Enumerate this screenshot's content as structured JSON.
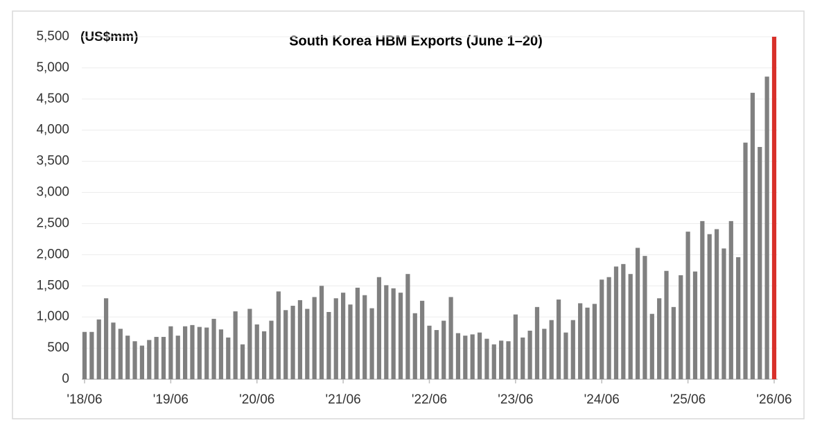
{
  "chart_data": {
    "type": "bar",
    "title": "South Korea HBM Exports (June 1–20)",
    "unit_label": "(US$mm)",
    "categories": [
      "'18/06",
      null,
      null,
      null,
      null,
      null,
      null,
      null,
      null,
      null,
      null,
      null,
      "'19/06",
      null,
      null,
      null,
      null,
      null,
      null,
      null,
      null,
      null,
      null,
      null,
      "'20/06",
      null,
      null,
      null,
      null,
      null,
      null,
      null,
      null,
      null,
      null,
      null,
      "'21/06",
      null,
      null,
      null,
      null,
      null,
      null,
      null,
      null,
      null,
      null,
      null,
      "'22/06",
      null,
      null,
      null,
      null,
      null,
      null,
      null,
      null,
      null,
      null,
      null,
      "'23/06",
      null,
      null,
      null,
      null,
      null,
      null,
      null,
      null,
      null,
      null,
      null,
      "'24/06",
      null,
      null,
      null,
      null,
      null,
      null,
      null,
      null,
      null,
      null,
      null,
      "'25/06",
      null,
      null,
      null,
      null,
      null,
      null,
      null,
      null,
      null,
      null,
      null,
      "'26/06"
    ],
    "values": [
      760,
      760,
      960,
      1300,
      910,
      810,
      700,
      610,
      540,
      630,
      680,
      680,
      850,
      700,
      850,
      870,
      840,
      830,
      970,
      800,
      670,
      1090,
      560,
      1130,
      880,
      770,
      940,
      1410,
      1110,
      1180,
      1270,
      1130,
      1320,
      1500,
      1080,
      1300,
      1390,
      1200,
      1470,
      1350,
      1140,
      1640,
      1510,
      1460,
      1390,
      1690,
      1060,
      1260,
      860,
      790,
      940,
      1320,
      740,
      700,
      720,
      750,
      650,
      560,
      620,
      610,
      1040,
      670,
      780,
      1160,
      810,
      950,
      1280,
      750,
      950,
      1220,
      1150,
      1210,
      1600,
      1640,
      1810,
      1850,
      1690,
      2110,
      1980,
      1050,
      1300,
      1740,
      1160,
      1670,
      2370,
      1730,
      2540,
      2330,
      2410,
      2100,
      2540,
      1960,
      3800,
      4600,
      3730,
      4860,
      5500
    ],
    "color": "#808080",
    "highlight_color": "#d8302a",
    "highlight_last": true,
    "ylim": [
      0,
      5500
    ],
    "yticks": [
      0,
      500,
      {
        "value": 1000,
        "label": "1,000"
      },
      {
        "value": 1500,
        "label": "1,500"
      },
      {
        "value": 2000,
        "label": "2,000"
      },
      {
        "value": 2500,
        "label": "2,500"
      },
      {
        "value": 3000,
        "label": "3,000"
      },
      {
        "value": 3500,
        "label": "3,500"
      },
      {
        "value": 4000,
        "label": "4,000"
      },
      {
        "value": 4500,
        "label": "4,500"
      },
      {
        "value": 5000,
        "label": "5,000"
      },
      {
        "value": 5500,
        "label": "5,500"
      }
    ],
    "grid": true
  }
}
